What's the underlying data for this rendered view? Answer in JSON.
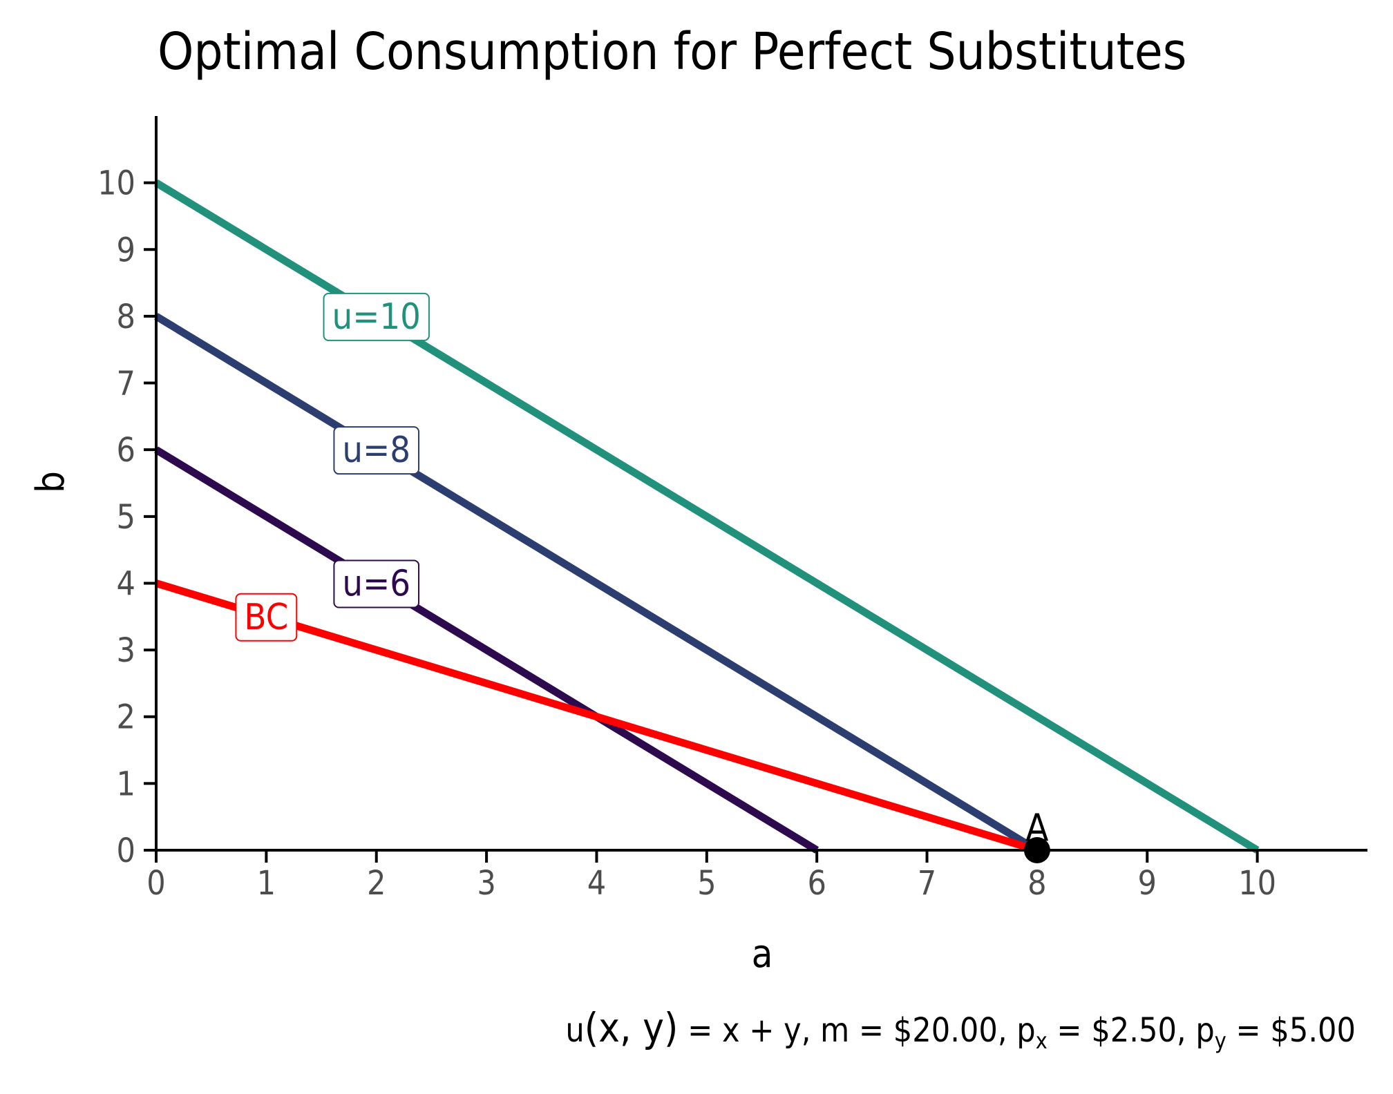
{
  "chart_data": {
    "type": "line",
    "title": "Optimal Consumption for Perfect Substitutes",
    "xlabel": "a",
    "ylabel": "b",
    "xlim": [
      0,
      11
    ],
    "ylim": [
      0,
      11
    ],
    "x_ticks": [
      0,
      1,
      2,
      3,
      4,
      5,
      6,
      7,
      8,
      9,
      10
    ],
    "y_ticks": [
      0,
      1,
      2,
      3,
      4,
      5,
      6,
      7,
      8,
      9,
      10
    ],
    "grid": false,
    "series": [
      {
        "name": "u=10",
        "color": "#21917c",
        "x": [
          0,
          10
        ],
        "y": [
          10,
          0
        ],
        "label_at": [
          2,
          8
        ]
      },
      {
        "name": "u=8",
        "color": "#2c3e70",
        "x": [
          0,
          8
        ],
        "y": [
          8,
          0
        ],
        "label_at": [
          2,
          6
        ]
      },
      {
        "name": "u=6",
        "color": "#2d0a4e",
        "x": [
          0,
          6
        ],
        "y": [
          6,
          0
        ],
        "label_at": [
          2,
          4
        ]
      },
      {
        "name": "BC",
        "color": "#ff0000",
        "x": [
          0,
          8
        ],
        "y": [
          4,
          0
        ],
        "label_at": [
          1,
          3.5
        ]
      }
    ],
    "points": [
      {
        "label": "A",
        "x": 8,
        "y": 0,
        "color": "#000000"
      }
    ],
    "caption": {
      "u_fn": "u",
      "u_args": "(x, y)",
      "u_eq": " = x + y, m = $20.00, p",
      "px_sub": "x",
      "px_val": " = $2.50, p",
      "py_sub": "y",
      "py_val": " = $5.00"
    }
  }
}
